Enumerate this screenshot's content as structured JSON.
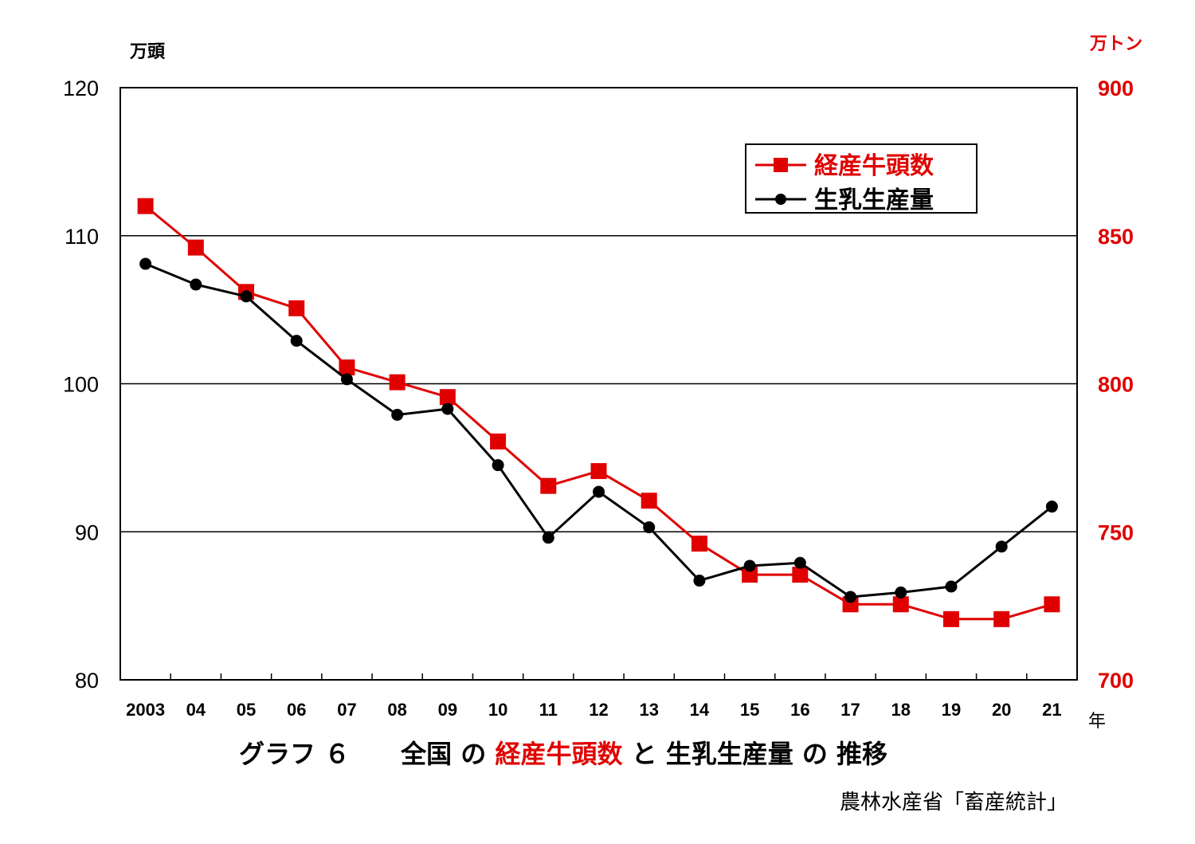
{
  "chart_data": {
    "type": "line",
    "categories": [
      "2003",
      "04",
      "05",
      "06",
      "07",
      "08",
      "09",
      "10",
      "11",
      "12",
      "13",
      "14",
      "15",
      "16",
      "17",
      "18",
      "19",
      "20",
      "21"
    ],
    "x_unit": "年",
    "y_left": {
      "unit": "万頭",
      "ylim": [
        80,
        120
      ],
      "ticks": [
        "80",
        "90",
        "100",
        "110",
        "120"
      ]
    },
    "y_right": {
      "unit": "万トン",
      "ylim": [
        700,
        900
      ],
      "ticks": [
        "700",
        "750",
        "800",
        "850",
        "900"
      ]
    },
    "grid": true,
    "legend_position": "top-right",
    "series": [
      {
        "name": "経産牛頭数",
        "axis": "left",
        "color": "#e00000",
        "marker": "square",
        "values": [
          112,
          109.2,
          106.2,
          105.1,
          101.1,
          100.1,
          99.1,
          96.1,
          93.1,
          94.1,
          92.1,
          89.2,
          87.1,
          87.1,
          85.1,
          85.1,
          84.1,
          84.1,
          85.1
        ]
      },
      {
        "name": "生乳生産量",
        "axis": "right",
        "color": "#000000",
        "marker": "circle",
        "values": [
          840.5,
          833.5,
          829.5,
          814.5,
          801.5,
          789.5,
          791.5,
          772.5,
          748,
          763.5,
          751.5,
          733.5,
          738.5,
          739.5,
          728,
          729.5,
          731.5,
          745,
          758.5
        ]
      }
    ],
    "title": {
      "part1": "グラフ ６　　全国 の ",
      "part2": "経産牛頭数",
      "part3": " と 生乳生産量 の 推移",
      "highlight_color": "#e00000"
    },
    "source": "農林水産省「畜産統計」"
  }
}
